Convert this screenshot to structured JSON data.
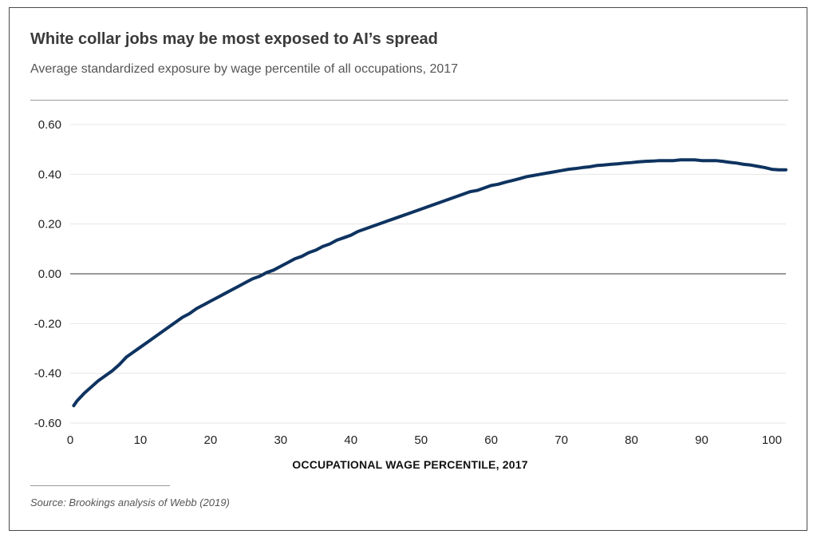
{
  "colors": {
    "line": "#0e3360",
    "grid": "#e6e6e6",
    "zero_line": "#333333",
    "text": "#222222"
  },
  "chart_data": {
    "type": "line",
    "title": "White collar jobs may be most exposed to AI’s spread",
    "subtitle": "Average standardized exposure by wage percentile of all occupations, 2017",
    "xlabel": "OCCUPATIONAL WAGE PERCENTILE, 2017",
    "ylabel": "",
    "source": "Source: Brookings analysis of Webb (2019)",
    "xlim": [
      0,
      102
    ],
    "ylim": [
      -0.6,
      0.6
    ],
    "x_ticks": [
      0,
      10,
      20,
      30,
      40,
      50,
      60,
      70,
      80,
      90,
      100
    ],
    "x_tick_labels": [
      "0",
      "10",
      "20",
      "30",
      "40",
      "50",
      "60",
      "70",
      "80",
      "90",
      "100"
    ],
    "y_ticks": [
      0.6,
      0.4,
      0.2,
      0.0,
      -0.2,
      -0.4,
      -0.6
    ],
    "y_tick_labels": [
      "0.60",
      "0.40",
      "0.20",
      "0.00",
      "-0.20",
      "-0.40",
      "-0.60"
    ],
    "grid": true,
    "series": [
      {
        "name": "Average standardized exposure",
        "x": [
          0.5,
          1,
          2,
          3,
          4,
          5,
          6,
          7,
          8,
          9,
          10,
          11,
          12,
          13,
          14,
          15,
          16,
          17,
          18,
          19,
          20,
          21,
          22,
          23,
          24,
          25,
          26,
          27,
          28,
          29,
          30,
          31,
          32,
          33,
          34,
          35,
          36,
          37,
          38,
          39,
          40,
          41,
          42,
          43,
          44,
          45,
          46,
          47,
          48,
          49,
          50,
          51,
          52,
          53,
          54,
          55,
          56,
          57,
          58,
          59,
          60,
          61,
          62,
          63,
          64,
          65,
          66,
          67,
          68,
          69,
          70,
          71,
          72,
          73,
          74,
          75,
          76,
          77,
          78,
          79,
          80,
          81,
          82,
          83,
          84,
          85,
          86,
          87,
          88,
          89,
          90,
          91,
          92,
          93,
          94,
          95,
          96,
          97,
          98,
          99,
          100,
          101,
          102
        ],
        "values": [
          -0.53,
          -0.51,
          -0.48,
          -0.455,
          -0.43,
          -0.41,
          -0.39,
          -0.365,
          -0.335,
          -0.315,
          -0.295,
          -0.275,
          -0.255,
          -0.235,
          -0.215,
          -0.195,
          -0.175,
          -0.16,
          -0.14,
          -0.125,
          -0.11,
          -0.095,
          -0.08,
          -0.065,
          -0.05,
          -0.035,
          -0.02,
          -0.01,
          0.005,
          0.015,
          0.03,
          0.045,
          0.06,
          0.07,
          0.085,
          0.095,
          0.11,
          0.12,
          0.135,
          0.145,
          0.155,
          0.17,
          0.18,
          0.19,
          0.2,
          0.21,
          0.22,
          0.23,
          0.24,
          0.25,
          0.26,
          0.27,
          0.28,
          0.29,
          0.3,
          0.31,
          0.32,
          0.33,
          0.335,
          0.345,
          0.355,
          0.36,
          0.368,
          0.375,
          0.382,
          0.39,
          0.395,
          0.4,
          0.405,
          0.41,
          0.415,
          0.42,
          0.423,
          0.427,
          0.43,
          0.435,
          0.437,
          0.44,
          0.442,
          0.445,
          0.447,
          0.45,
          0.452,
          0.453,
          0.455,
          0.455,
          0.455,
          0.458,
          0.458,
          0.458,
          0.455,
          0.455,
          0.455,
          0.452,
          0.448,
          0.445,
          0.44,
          0.437,
          0.432,
          0.427,
          0.42,
          0.418,
          0.418
        ]
      }
    ]
  }
}
